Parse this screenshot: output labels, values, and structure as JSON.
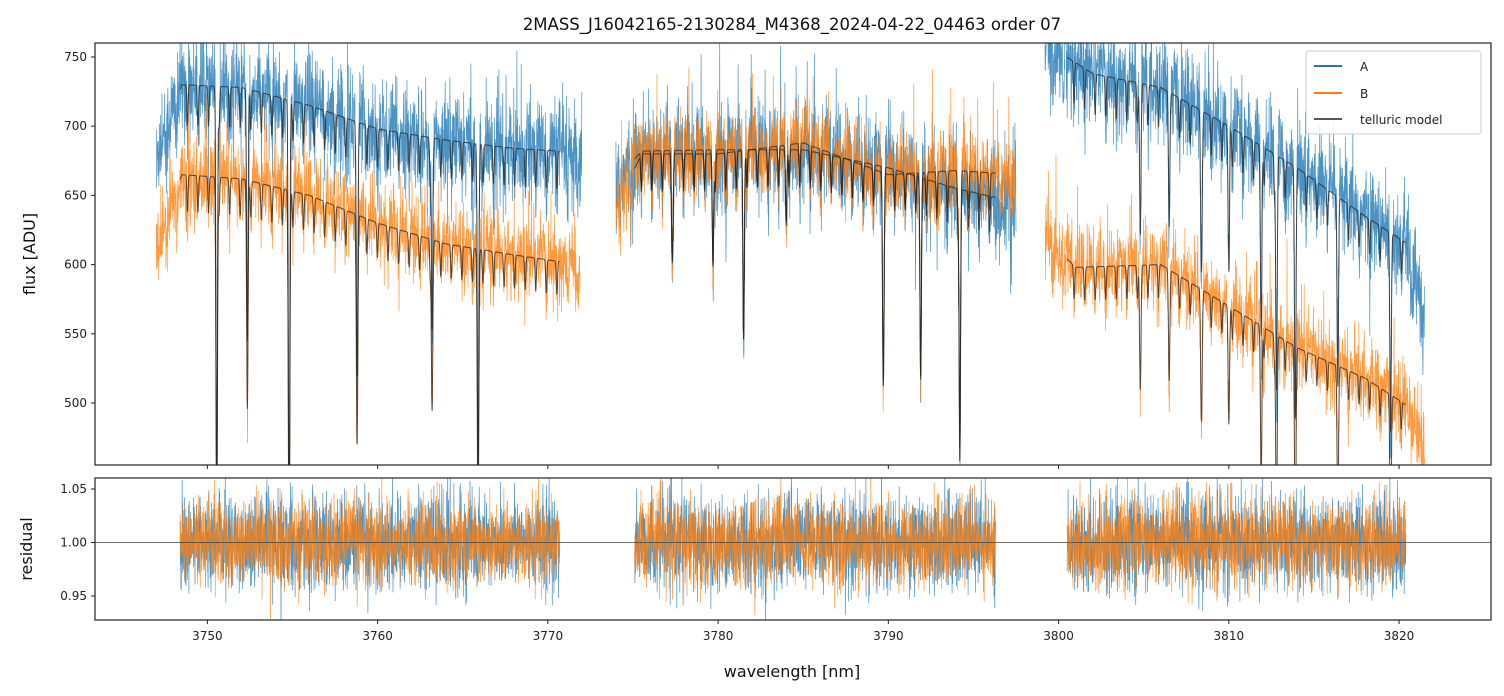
{
  "chart_data": [
    {
      "type": "line",
      "panel": "top",
      "title": "2MASS_J16042165-2130284_M4368_2024-04-22_04463  order 07",
      "xlabel": "wavelength [nm]",
      "ylabel": "flux [ADU]",
      "xlim": [
        3743.4,
        3825.4
      ],
      "ylim": [
        455.2,
        760.1
      ],
      "xticks": [
        3750,
        3760,
        3770,
        3780,
        3790,
        3800,
        3810,
        3820
      ],
      "yticks": [
        500,
        550,
        600,
        650,
        700,
        750
      ],
      "ytick_labels": [
        "500",
        "550",
        "600",
        "650",
        "700",
        "750"
      ],
      "grid": false,
      "legend": {
        "placement": "top-right",
        "entries": [
          "A",
          "B",
          "telluric model"
        ]
      },
      "colors": {
        "A": "#1f77b4",
        "B": "#ff7f0e",
        "model": "#222222"
      },
      "series": [
        {
          "name": "A",
          "segments": [
            {
              "x": [
                3747.0,
                3748.5,
                3752,
                3756,
                3760,
                3764,
                3768,
                3770.7,
                3772.0
              ],
              "y": [
                680,
                730,
                728,
                715,
                698,
                690,
                684,
                682,
                668
              ]
            },
            {
              "x": [
                3774.0,
                3775.5,
                3780,
                3785,
                3790,
                3794,
                3797.5
              ],
              "y": [
                660,
                682,
                683,
                683,
                670,
                655,
                645
              ]
            },
            {
              "x": [
                3799.2,
                3802,
                3806,
                3810,
                3814,
                3818,
                3820.5,
                3821.5
              ],
              "y": [
                760,
                738,
                728,
                700,
                670,
                635,
                615,
                560
              ]
            }
          ],
          "noise_sigma": 18
        },
        {
          "name": "B",
          "segments": [
            {
              "x": [
                3747.0,
                3748.5,
                3752,
                3756,
                3760,
                3764,
                3768,
                3771.9
              ],
              "y": [
                610,
                665,
                662,
                650,
                630,
                615,
                607,
                600
              ]
            },
            {
              "x": [
                3774.0,
                3775.5,
                3780,
                3785,
                3790,
                3794,
                3797.5
              ],
              "y": [
                640,
                680,
                680,
                688,
                665,
                668,
                665
              ]
            },
            {
              "x": [
                3799.2,
                3801,
                3806,
                3810,
                3814,
                3818,
                3820.5,
                3821.5
              ],
              "y": [
                620,
                598,
                600,
                570,
                540,
                518,
                498,
                470
              ]
            }
          ],
          "noise_sigma": 14
        },
        {
          "name": "telluric model",
          "ranges": [
            [
              3748.4,
              3770.7
            ],
            [
              3775.1,
              3796.3
            ],
            [
              3800.5,
              3820.4
            ]
          ]
        }
      ],
      "absorption_lines": {
        "center_nm": [
          3750.55,
          3752.35,
          3754.8,
          3758.8,
          3763.2,
          3765.9,
          3777.3,
          3779.7,
          3781.5,
          3784.0,
          3789.7,
          3791.9,
          3794.2,
          3804.8,
          3806.5,
          3808.4,
          3810.0,
          3811.9,
          3812.8,
          3813.9,
          3816.4,
          3819.5
        ],
        "depth": [
          0.4,
          0.25,
          0.45,
          0.25,
          0.2,
          0.35,
          0.1,
          0.12,
          0.2,
          0.08,
          0.22,
          0.22,
          0.3,
          0.15,
          0.1,
          0.15,
          0.15,
          0.2,
          0.25,
          0.25,
          0.18,
          0.2
        ],
        "weak_line_spacing_nm": 0.62,
        "weak_line_depth": 0.04
      }
    },
    {
      "type": "line",
      "panel": "bottom",
      "xlabel": "wavelength [nm]",
      "ylabel": "residual",
      "xlim": [
        3743.4,
        3825.4
      ],
      "ylim": [
        0.9276,
        1.0603
      ],
      "xticks": [
        3750,
        3760,
        3770,
        3780,
        3790,
        3800,
        3810,
        3820
      ],
      "xtick_labels": [
        "3750",
        "3760",
        "3770",
        "3780",
        "3790",
        "3800",
        "3810",
        "3820"
      ],
      "yticks": [
        0.95,
        1.0,
        1.05
      ],
      "ytick_labels": [
        "0.95",
        "1.00",
        "1.05"
      ],
      "reference_line": 1.0,
      "series": [
        {
          "name": "A",
          "ranges": [
            [
              3748.4,
              3770.7
            ],
            [
              3775.1,
              3796.3
            ],
            [
              3800.5,
              3820.4
            ]
          ],
          "mean": 1.0,
          "sigma": 0.022
        },
        {
          "name": "B",
          "ranges": [
            [
              3748.4,
              3770.7
            ],
            [
              3775.1,
              3796.3
            ],
            [
              3800.5,
              3820.4
            ]
          ],
          "mean": 1.0,
          "sigma": 0.02
        }
      ]
    }
  ]
}
